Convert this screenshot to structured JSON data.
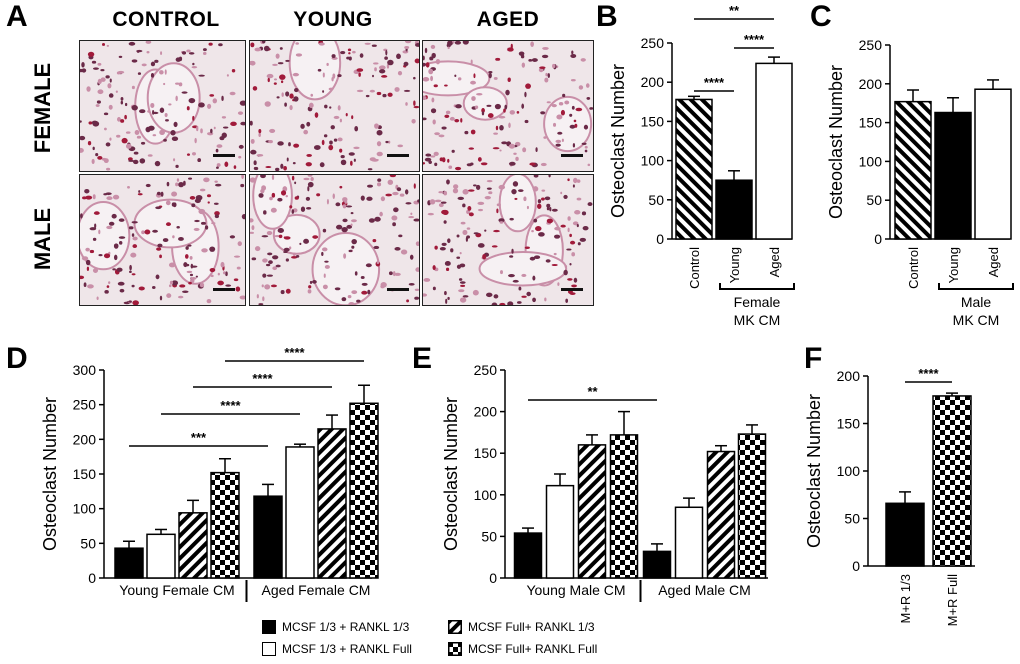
{
  "panels": {
    "A": {
      "label": "A",
      "columns": [
        "CONTROL",
        "YOUNG",
        "AGED"
      ],
      "rows": [
        "FEMALE",
        "MALE"
      ]
    },
    "B": "B",
    "C": "C",
    "D": "D",
    "E": "E",
    "F": "F"
  },
  "colors": {
    "bar": "#000000",
    "bg": "#ffffff",
    "stain_light": "#efe6e9",
    "stain_mid": "#c98fa8",
    "stain_dark": "#6b2a48",
    "stain_red": "#a11a3a"
  },
  "legend": {
    "items": [
      {
        "label": "MCSF 1/3 + RANKL 1/3",
        "pattern": "solid"
      },
      {
        "label": "MCSF Full+ RANKL 1/3",
        "pattern": "hatch"
      },
      {
        "label": "MCSF 1/3 + RANKL Full",
        "pattern": "open"
      },
      {
        "label": "MCSF Full+ RANKL Full",
        "pattern": "checker"
      }
    ]
  },
  "chart_data": [
    {
      "id": "B",
      "type": "bar",
      "ylabel": "Osteoclast Number",
      "ylim": [
        0,
        250
      ],
      "yticks": [
        0,
        50,
        100,
        150,
        200,
        250
      ],
      "categories": [
        "Control",
        "Young",
        "Aged"
      ],
      "values": [
        178,
        75,
        224
      ],
      "errors": [
        4,
        12,
        8
      ],
      "patterns": [
        "hatch-back",
        "solid",
        "open"
      ],
      "group_label": [
        "Female",
        "MK CM"
      ],
      "significance": [
        {
          "from": 0,
          "to": 1,
          "label": "****"
        },
        {
          "from": 1,
          "to": 2,
          "label": "****"
        },
        {
          "from": 0,
          "to": 2,
          "label": "**"
        }
      ]
    },
    {
      "id": "C",
      "type": "bar",
      "ylabel": "Osteoclast Number",
      "ylim": [
        0,
        250
      ],
      "yticks": [
        0,
        50,
        100,
        150,
        200,
        250
      ],
      "categories": [
        "Control",
        "Young",
        "Aged"
      ],
      "values": [
        177,
        163,
        193
      ],
      "errors": [
        15,
        19,
        12
      ],
      "patterns": [
        "hatch-back",
        "solid",
        "open"
      ],
      "group_label": [
        "Male",
        "MK CM"
      ],
      "significance": []
    },
    {
      "id": "D",
      "type": "bar",
      "ylabel": "Osteoclast Number",
      "ylim": [
        0,
        300
      ],
      "yticks": [
        0,
        50,
        100,
        150,
        200,
        250,
        300
      ],
      "groups": [
        "Young Female CM",
        "Aged Female CM"
      ],
      "series_patterns": [
        "solid",
        "open",
        "hatch",
        "checker"
      ],
      "values": [
        [
          43,
          63,
          94,
          152
        ],
        [
          118,
          189,
          215,
          252
        ]
      ],
      "errors": [
        [
          10,
          7,
          18,
          20
        ],
        [
          17,
          4,
          20,
          26
        ]
      ],
      "significance": [
        {
          "from": [
            0,
            0
          ],
          "to": [
            1,
            0
          ],
          "label": "***"
        },
        {
          "from": [
            0,
            1
          ],
          "to": [
            1,
            1
          ],
          "label": "****"
        },
        {
          "from": [
            0,
            2
          ],
          "to": [
            1,
            2
          ],
          "label": "****"
        },
        {
          "from": [
            0,
            3
          ],
          "to": [
            1,
            3
          ],
          "label": "****"
        }
      ]
    },
    {
      "id": "E",
      "type": "bar",
      "ylabel": "Osteoclast Number",
      "ylim": [
        0,
        250
      ],
      "yticks": [
        0,
        50,
        100,
        150,
        200,
        250
      ],
      "groups": [
        "Young Male CM",
        "Aged Male CM"
      ],
      "series_patterns": [
        "solid",
        "open",
        "hatch",
        "checker"
      ],
      "values": [
        [
          54,
          111,
          160,
          172
        ],
        [
          32,
          85,
          152,
          173
        ]
      ],
      "errors": [
        [
          6,
          14,
          12,
          28
        ],
        [
          9,
          11,
          7,
          11
        ]
      ],
      "significance": [
        {
          "from": [
            0,
            0
          ],
          "to": [
            1,
            0
          ],
          "label": "**"
        }
      ]
    },
    {
      "id": "F",
      "type": "bar",
      "ylabel": "Osteoclast Number",
      "ylim": [
        0,
        200
      ],
      "yticks": [
        0,
        50,
        100,
        150,
        200
      ],
      "categories": [
        "M+R 1/3",
        "M+R Full"
      ],
      "values": [
        66,
        179
      ],
      "errors": [
        12,
        3
      ],
      "patterns": [
        "solid",
        "checker"
      ],
      "significance": [
        {
          "from": 0,
          "to": 1,
          "label": "****"
        }
      ]
    }
  ]
}
